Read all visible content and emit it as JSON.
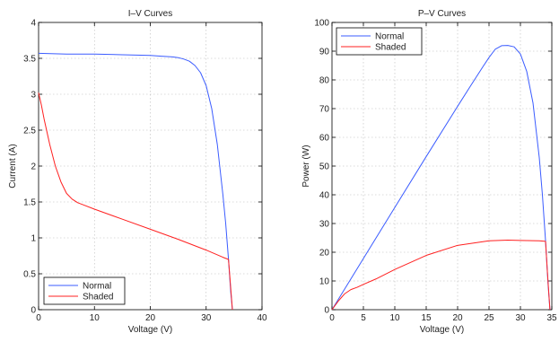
{
  "chart_data": [
    {
      "type": "line",
      "title": "I–V Curves",
      "xlabel": "Voltage (V)",
      "ylabel": "Current (A)",
      "xlim": [
        0,
        40
      ],
      "ylim": [
        0,
        4
      ],
      "xticks": [
        0,
        10,
        20,
        30,
        40
      ],
      "yticks": [
        0,
        0.5,
        1,
        1.5,
        2,
        2.5,
        3,
        3.5,
        4
      ],
      "xtick_labels": [
        "0",
        "10",
        "20",
        "30",
        "40"
      ],
      "ytick_labels": [
        "0",
        "0.5",
        "1",
        "1.5",
        "2",
        "2.5",
        "3",
        "3.5",
        "4"
      ],
      "grid": true,
      "legend_position": "bottom-left",
      "series": [
        {
          "name": "Normal",
          "color": "#3b5cff",
          "x": [
            0,
            5,
            10,
            15,
            20,
            22,
            24,
            25,
            26,
            27,
            28,
            29,
            30,
            31,
            32,
            33,
            33.5,
            34,
            34.4,
            34.7
          ],
          "y": [
            3.57,
            3.56,
            3.56,
            3.55,
            3.54,
            3.53,
            3.52,
            3.51,
            3.49,
            3.46,
            3.4,
            3.3,
            3.12,
            2.8,
            2.3,
            1.6,
            1.2,
            0.7,
            0.25,
            0
          ]
        },
        {
          "name": "Shaded",
          "color": "#ff2020",
          "x": [
            0,
            0.5,
            1,
            2,
            3,
            4,
            5,
            6,
            7,
            8,
            10,
            15,
            20,
            25,
            30,
            33,
            34,
            34.3,
            34.7
          ],
          "y": [
            3.02,
            2.85,
            2.65,
            2.3,
            2.0,
            1.78,
            1.62,
            1.54,
            1.49,
            1.46,
            1.4,
            1.26,
            1.12,
            0.98,
            0.83,
            0.73,
            0.7,
            0.4,
            0
          ]
        }
      ]
    },
    {
      "type": "line",
      "title": "P–V Curves",
      "xlabel": "Voltage (V)",
      "ylabel": "Power (W)",
      "xlim": [
        0,
        35
      ],
      "ylim": [
        0,
        100
      ],
      "xticks": [
        0,
        5,
        10,
        15,
        20,
        25,
        30,
        35
      ],
      "yticks": [
        0,
        10,
        20,
        30,
        40,
        50,
        60,
        70,
        80,
        90,
        100
      ],
      "xtick_labels": [
        "0",
        "5",
        "10",
        "15",
        "20",
        "25",
        "30",
        "35"
      ],
      "ytick_labels": [
        "0",
        "10",
        "20",
        "30",
        "40",
        "50",
        "60",
        "70",
        "80",
        "90",
        "100"
      ],
      "grid": true,
      "legend_position": "top-left",
      "series": [
        {
          "name": "Normal",
          "color": "#3b5cff",
          "x": [
            0,
            5,
            10,
            15,
            20,
            22,
            24,
            25,
            26,
            27,
            28,
            29,
            30,
            31,
            32,
            33,
            33.5,
            34,
            34.4,
            34.7
          ],
          "y": [
            0,
            17.8,
            35.6,
            53.3,
            70.8,
            77.7,
            84.5,
            87.8,
            90.7,
            91.9,
            92.0,
            91.5,
            89.0,
            83.0,
            72.0,
            53.0,
            40.0,
            24.0,
            9.0,
            0
          ]
        },
        {
          "name": "Shaded",
          "color": "#ff2020",
          "x": [
            0,
            1,
            2,
            3,
            4,
            5,
            7,
            10,
            15,
            20,
            25,
            28,
            30,
            33,
            34,
            34.3,
            34.7
          ],
          "y": [
            0,
            3.0,
            5.5,
            7.0,
            7.8,
            8.8,
            10.7,
            14.0,
            18.9,
            22.4,
            24.0,
            24.2,
            24.1,
            24.0,
            23.8,
            13.0,
            0
          ]
        }
      ]
    }
  ]
}
